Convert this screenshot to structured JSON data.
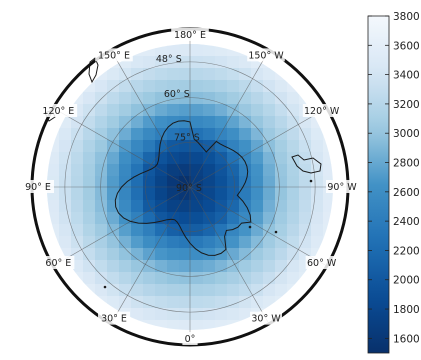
{
  "chart_data": {
    "type": "heatmap",
    "projection": "south-polar-stereographic",
    "center_label": "90° S",
    "latitude_labels": [
      "75° S",
      "60° S",
      "48° S"
    ],
    "longitude_labels": [
      {
        "lon": 0,
        "text": "0°"
      },
      {
        "lon": 30,
        "text": "30° E"
      },
      {
        "lon": 60,
        "text": "60° E"
      },
      {
        "lon": 90,
        "text": "90° E"
      },
      {
        "lon": 120,
        "text": "120° E"
      },
      {
        "lon": 150,
        "text": "150° E"
      },
      {
        "lon": 180,
        "text": "180° E"
      },
      {
        "lon": -150,
        "text": "150° W"
      },
      {
        "lon": -120,
        "text": "120° W"
      },
      {
        "lon": -90,
        "text": "90° W"
      },
      {
        "lon": -60,
        "text": "60° W"
      },
      {
        "lon": -30,
        "text": "30° W"
      }
    ],
    "colorbar": {
      "min": 1500,
      "max": 3800,
      "ticks": [
        1600,
        1800,
        2000,
        2200,
        2400,
        2600,
        2800,
        3000,
        3200,
        3400,
        3600,
        3800
      ],
      "colors": [
        "#08306b",
        "#0a4d96",
        "#2171b5",
        "#4292c6",
        "#9ecae1",
        "#d6e6f4",
        "#f4f8fd"
      ]
    },
    "field": {
      "description_lat_profile": [
        {
          "colat": 0,
          "value": 1560
        },
        {
          "colat": 8,
          "value": 1750
        },
        {
          "colat": 15,
          "value": 2050
        },
        {
          "colat": 20,
          "value": 2450
        },
        {
          "colat": 30,
          "value": 2950
        },
        {
          "colat": 42,
          "value": 3350
        },
        {
          "colat": 48,
          "value": 3550
        }
      ]
    },
    "grid": true,
    "coastlines": true
  }
}
